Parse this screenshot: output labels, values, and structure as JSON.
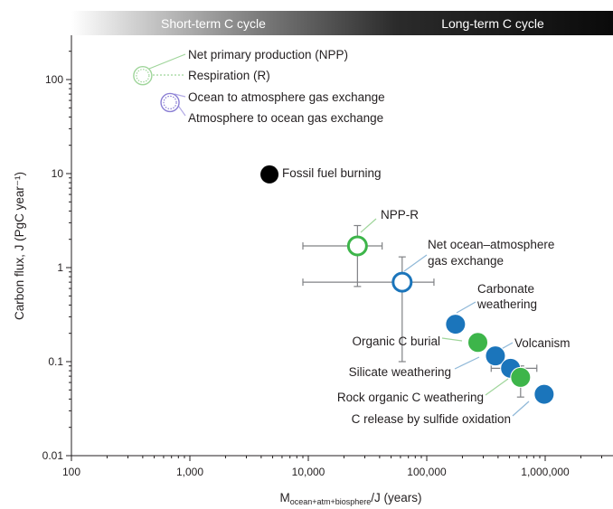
{
  "chart_data": {
    "type": "scatter",
    "band": {
      "left_label": "Short-term C cycle",
      "right_label": "Long-term C cycle"
    },
    "xlabel_main": "M",
    "xlabel_sub": "ocean+atm+biosphere",
    "xlabel_tail": "/J (years)",
    "ylabel": "Carbon flux, J (PgC year⁻¹)",
    "xscale": "log",
    "yscale": "log",
    "xlim": [
      100,
      4000000
    ],
    "ylim": [
      0.01,
      500
    ],
    "xticks": [
      {
        "value": 100,
        "label": "100"
      },
      {
        "value": 1000,
        "label": "1,000"
      },
      {
        "value": 10000,
        "label": "10,000"
      },
      {
        "value": 100000,
        "label": "100,000"
      },
      {
        "value": 1000000,
        "label": "1,000,000"
      }
    ],
    "yticks": [
      {
        "value": 0.01,
        "label": "0.01"
      },
      {
        "value": 0.1,
        "label": "0.1"
      },
      {
        "value": 1,
        "label": "1"
      },
      {
        "value": 10,
        "label": "10"
      },
      {
        "value": 100,
        "label": "100"
      }
    ],
    "colors": {
      "green": "#3db54a",
      "blue": "#1b75bb",
      "purple": "#8b7fd4",
      "black": "#000000",
      "light_green": "#9fd59a",
      "connector": "#8fb8d8"
    },
    "points": [
      {
        "name": "npp-resp",
        "x": 400,
        "y": 110,
        "style": "dotted-green"
      },
      {
        "name": "ocean-atm",
        "x": 680,
        "y": 57,
        "style": "dotted-purple"
      },
      {
        "name": "fossil",
        "x": 4700,
        "y": 9.8,
        "style": "black"
      },
      {
        "name": "npp-r",
        "x": 26000,
        "y": 1.7,
        "style": "open-green",
        "xerr": [
          9000,
          42000
        ],
        "yerr": [
          0.63,
          2.8
        ]
      },
      {
        "name": "net-ocean",
        "x": 62000,
        "y": 0.7,
        "style": "open-blue",
        "xerr": [
          9000,
          115000
        ],
        "yerr": [
          0.1,
          1.3
        ]
      },
      {
        "name": "carbonate",
        "x": 175000,
        "y": 0.25,
        "style": "blue"
      },
      {
        "name": "org-burial",
        "x": 270000,
        "y": 0.16,
        "style": "green"
      },
      {
        "name": "silicate",
        "x": 380000,
        "y": 0.115,
        "style": "blue"
      },
      {
        "name": "volcanism",
        "x": 510000,
        "y": 0.085,
        "style": "blue",
        "xerr": [
          350000,
          850000
        ]
      },
      {
        "name": "rock-org",
        "x": 620000,
        "y": 0.068,
        "style": "green",
        "yerr": [
          0.042,
          0.09
        ]
      },
      {
        "name": "sulfide",
        "x": 980000,
        "y": 0.045,
        "style": "blue"
      }
    ],
    "annotations": [
      {
        "name": "npp",
        "text": "Net primary production (NPP)"
      },
      {
        "name": "resp",
        "text": "Respiration (R)"
      },
      {
        "name": "o2a",
        "text": "Ocean to atmosphere gas exchange"
      },
      {
        "name": "a2o",
        "text": "Atmosphere to ocean gas exchange"
      },
      {
        "name": "fossil",
        "text": "Fossil fuel burning"
      },
      {
        "name": "nppr",
        "text": "NPP-R"
      },
      {
        "name": "net1",
        "text": "Net ocean–atmosphere"
      },
      {
        "name": "net2",
        "text": "gas exchange"
      },
      {
        "name": "carb1",
        "text": "Carbonate"
      },
      {
        "name": "carb2",
        "text": "weathering"
      },
      {
        "name": "burial",
        "text": "Organic C burial"
      },
      {
        "name": "volc",
        "text": "Volcanism"
      },
      {
        "name": "silicate",
        "text": "Silicate weathering"
      },
      {
        "name": "rockorg",
        "text": "Rock organic C weathering"
      },
      {
        "name": "sulfide",
        "text": "C release by sulfide oxidation"
      }
    ]
  }
}
